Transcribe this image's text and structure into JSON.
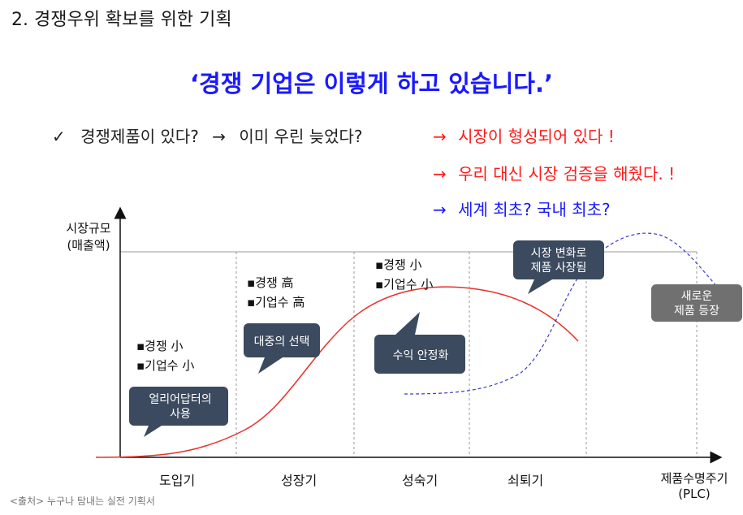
{
  "title": "2. 경쟁우위 확보를 위한 기획",
  "headline": "‘경쟁 기업은 이렇게 하고 있습니다.’",
  "bullets": {
    "check_mark": "✓",
    "line1_question": "경쟁제품이 있다?",
    "arrow": "→",
    "line1_answer": "이미 우린 늦었다?",
    "red_arrow": "→",
    "reason1": "시장이 형성되어 있다 !",
    "reason2": "우리 대신 시장 검증을 해줬다. !",
    "reason3": "세계 최초? 국내 최초?"
  },
  "axes": {
    "y_label_line1": "시장규모",
    "y_label_line2": "(매출액)",
    "x_label_line1": "제품수명주기",
    "x_label_line2": "(PLC)"
  },
  "phases": [
    "도입기",
    "성장기",
    "성숙기",
    "쇠퇴기"
  ],
  "notes": {
    "intro_competition": "▪경쟁 小",
    "intro_entrants": "▪기업수 小",
    "growth_competition": "▪경쟁 高",
    "growth_entrants": "▪기업수 高",
    "maturity_competition": "▪경쟁 小",
    "maturity_entrants": "▪기업수 小"
  },
  "callouts": {
    "early_adopter_line1": "얼리어답터의",
    "early_adopter_line2": "사용",
    "mass_choice": "대중의 선택",
    "stable_profit": "수익 안정화",
    "market_change_line1": "시장 변화로",
    "market_change_line2": "제품 사장됨",
    "new_product_line1": "새로운",
    "new_product_line2": "제품 등장"
  },
  "colors": {
    "headline": "#1a1aff",
    "reason_red": "#ff1a1a",
    "reason_blue": "#1a1aff",
    "curve_current": "#e8302a",
    "curve_new": "#3b3bd0",
    "callout_dark": "#3b4a5e",
    "callout_gray": "#707070"
  },
  "source": "<출처> 누구나 탐내는 실전 기획서"
}
